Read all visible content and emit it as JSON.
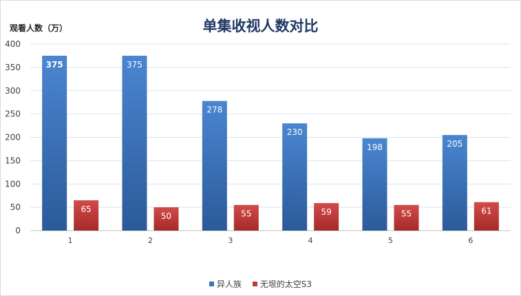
{
  "chart_data": {
    "type": "bar",
    "title": "单集收视人数对比",
    "ylabel": "观看人数（万）",
    "xlabel": "",
    "categories": [
      "1",
      "2",
      "3",
      "4",
      "5",
      "6"
    ],
    "ylim": [
      0,
      400
    ],
    "yticks": [
      0,
      50,
      100,
      150,
      200,
      250,
      300,
      350,
      400
    ],
    "grid": true,
    "legend_position": "bottom",
    "series": [
      {
        "name": "异人族",
        "color": "#3a74c0",
        "values": [
          375,
          375,
          278,
          230,
          198,
          205
        ]
      },
      {
        "name": "无垠的太空S3",
        "color": "#c0393b",
        "values": [
          65,
          50,
          55,
          59,
          55,
          61
        ]
      }
    ]
  }
}
